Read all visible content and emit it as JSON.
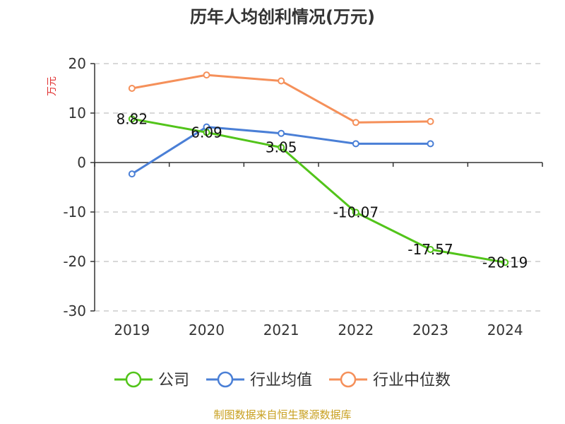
{
  "chart_data": {
    "type": "line",
    "title": "历年人均创利情况(万元)",
    "ylabel": "万元",
    "categories": [
      "2019",
      "2020",
      "2021",
      "2022",
      "2023",
      "2024"
    ],
    "ylim": [
      -30,
      20
    ],
    "yticks": [
      20,
      10,
      0,
      -10,
      -20,
      -30
    ],
    "grid": true,
    "legend_position": "bottom",
    "series": [
      {
        "name": "公司",
        "color": "#52c41a",
        "values": [
          8.82,
          6.09,
          3.05,
          -10.07,
          -17.57,
          -20.19
        ],
        "labels": [
          "8.82",
          "6.09",
          "3.05",
          "-10.07",
          "-17.57",
          "-20.19"
        ]
      },
      {
        "name": "行业均值",
        "color": "#4a7fd6",
        "values": [
          -2.3,
          7.2,
          5.9,
          3.8,
          3.8,
          null
        ]
      },
      {
        "name": "行业中位数",
        "color": "#f5905a",
        "values": [
          15.0,
          17.7,
          16.5,
          8.1,
          8.3,
          null
        ]
      }
    ]
  },
  "footer": {
    "source": "制图数据来自恒生聚源数据库"
  }
}
